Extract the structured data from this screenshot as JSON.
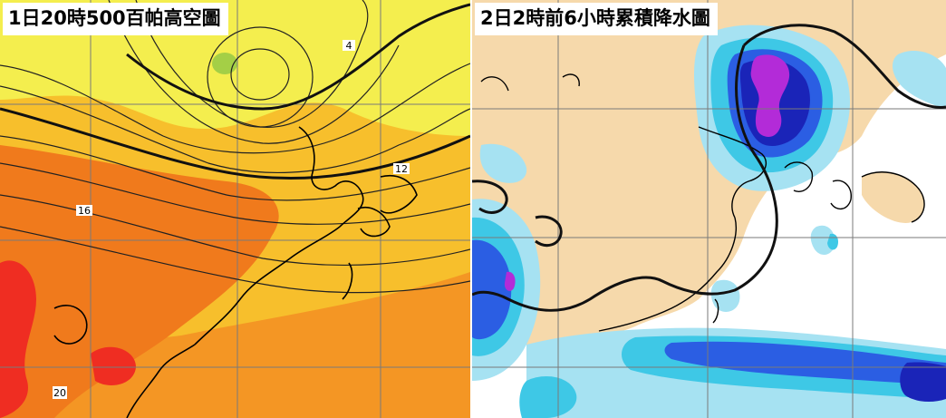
{
  "panels": [
    {
      "id": "left",
      "title": "1日20時500百帕高空圖",
      "contour_labels": [
        "4",
        "12",
        "16",
        "20"
      ],
      "colors": {
        "yellow": "#f4ee4e",
        "light_orange": "#f7bf2c",
        "orange": "#f49624",
        "dark_orange": "#f07a1c",
        "red": "#ef2d22",
        "green_patch": "#a4cf46"
      }
    },
    {
      "id": "right",
      "title": "2日2時前6小時累積降水圖",
      "colors": {
        "land": "#f6d9ab",
        "sea": "#ffffff",
        "light_cyan": "#a6e2f2",
        "cyan": "#3ec8e6",
        "blue": "#2b5ee3",
        "dark_blue": "#1a24b8",
        "magenta": "#b32bd8"
      }
    }
  ]
}
